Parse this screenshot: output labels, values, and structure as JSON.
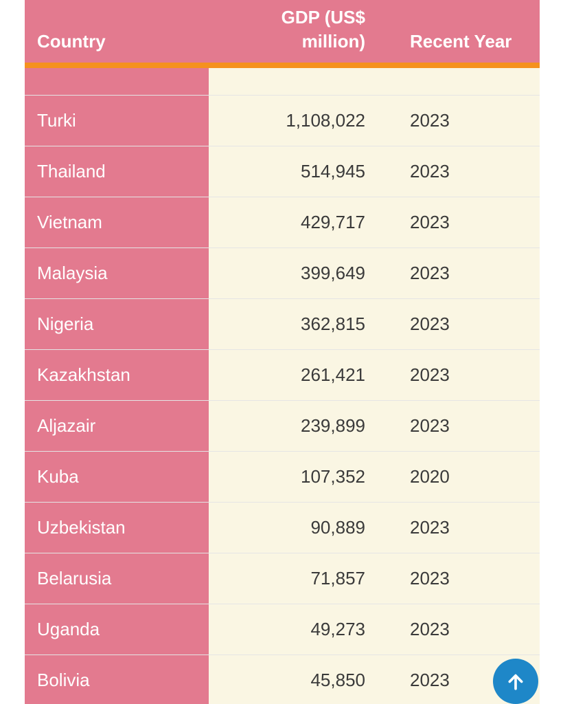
{
  "colors": {
    "pink": "#e37a8f",
    "cream": "#faf6e3",
    "orange": "#f5911e",
    "blue": "#1e87c8",
    "ink": "#3a3a3a",
    "white": "#ffffff"
  },
  "table": {
    "columns": [
      {
        "label": "Country"
      },
      {
        "label": "GDP (US$ million)"
      },
      {
        "label": "Recent Year"
      }
    ],
    "rows": [
      {
        "country": "Turki",
        "gdp": "1,108,022",
        "year": "2023"
      },
      {
        "country": "Thailand",
        "gdp": "514,945",
        "year": "2023"
      },
      {
        "country": "Vietnam",
        "gdp": "429,717",
        "year": "2023"
      },
      {
        "country": "Malaysia",
        "gdp": "399,649",
        "year": "2023"
      },
      {
        "country": "Nigeria",
        "gdp": "362,815",
        "year": "2023"
      },
      {
        "country": "Kazakhstan",
        "gdp": "261,421",
        "year": "2023"
      },
      {
        "country": "Aljazair",
        "gdp": "239,899",
        "year": "2023"
      },
      {
        "country": "Kuba",
        "gdp": "107,352",
        "year": "2020"
      },
      {
        "country": "Uzbekistan",
        "gdp": "90,889",
        "year": "2023"
      },
      {
        "country": "Belarusia",
        "gdp": "71,857",
        "year": "2023"
      },
      {
        "country": "Uganda",
        "gdp": "49,273",
        "year": "2023"
      },
      {
        "country": "Bolivia",
        "gdp": "45,850",
        "year": "2023"
      }
    ]
  },
  "scroll_top_button": {
    "icon": "up-arrow"
  }
}
